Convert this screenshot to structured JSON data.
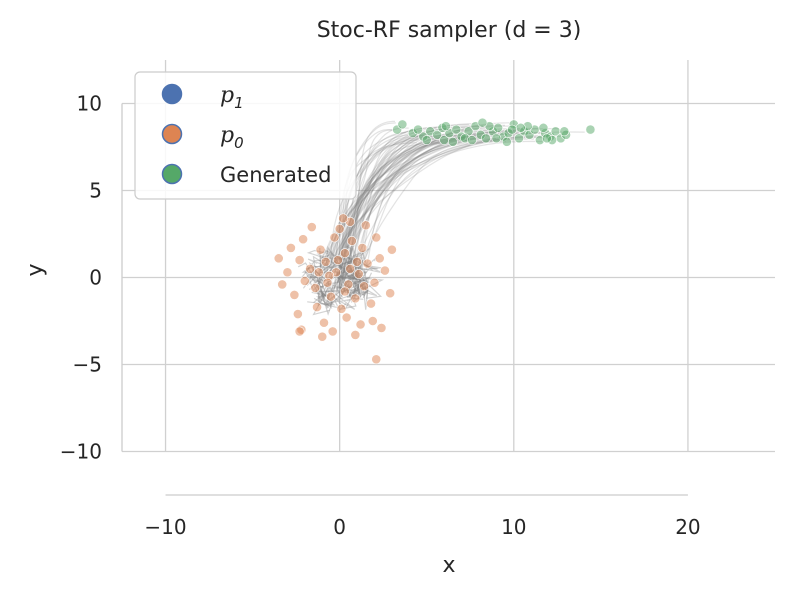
{
  "chart_data": {
    "type": "scatter",
    "title": "Stoc-RF sampler (d = 3)",
    "xlabel": "x",
    "ylabel": "y",
    "xlim": [
      -12.5,
      25
    ],
    "ylim": [
      -12.5,
      12.5
    ],
    "xticks": [
      -10,
      0,
      10,
      20
    ],
    "yticks": [
      -10,
      -5,
      0,
      5,
      10
    ],
    "xtick_labels": [
      "−10",
      "0",
      "10",
      "20"
    ],
    "ytick_labels": [
      "−10",
      "−5",
      "0",
      "5",
      "10"
    ],
    "grid": true,
    "legend_position": "top-left",
    "legend": [
      {
        "label": "p",
        "sub": "1",
        "math": true,
        "color": "#4c72b0"
      },
      {
        "label": "p",
        "sub": "0",
        "math": true,
        "color": "#dd8452"
      },
      {
        "label": "Generated",
        "math": false,
        "color": "#55a868"
      }
    ],
    "series": [
      {
        "name": "p_0",
        "color": "#dd8452",
        "points": [
          [
            -0.2,
            0.3
          ],
          [
            0.5,
            -0.4
          ],
          [
            -0.8,
            0.9
          ],
          [
            1.1,
            0.2
          ],
          [
            0.3,
            1.4
          ],
          [
            -1.4,
            -0.6
          ],
          [
            0.9,
            -1.2
          ],
          [
            -0.5,
            -1.1
          ],
          [
            1.6,
            0.8
          ],
          [
            -1.7,
            0.5
          ],
          [
            0.1,
            -1.8
          ],
          [
            1.3,
            1.7
          ],
          [
            -1.1,
            1.6
          ],
          [
            2.0,
            -0.3
          ],
          [
            -2.0,
            -0.2
          ],
          [
            0.7,
            2.1
          ],
          [
            -0.3,
            2.3
          ],
          [
            0.4,
            -2.3
          ],
          [
            -1.3,
            -1.7
          ],
          [
            1.8,
            -1.5
          ],
          [
            2.3,
            1.1
          ],
          [
            -2.3,
            1.0
          ],
          [
            -2.6,
            -1.0
          ],
          [
            2.6,
            0.4
          ],
          [
            0.0,
            2.8
          ],
          [
            -0.9,
            -2.6
          ],
          [
            1.2,
            -2.7
          ],
          [
            -2.1,
            2.2
          ],
          [
            2.1,
            2.3
          ],
          [
            -3.0,
            0.3
          ],
          [
            -2.4,
            -2.1
          ],
          [
            1.9,
            -2.5
          ],
          [
            0.6,
            3.2
          ],
          [
            -0.4,
            -3.1
          ],
          [
            2.9,
            -0.9
          ],
          [
            -3.3,
            -0.4
          ],
          [
            3.0,
            1.6
          ],
          [
            -1.6,
            2.9
          ],
          [
            0.9,
            -3.3
          ],
          [
            -2.8,
            1.7
          ],
          [
            -2.2,
            -3.0
          ],
          [
            1.5,
            3.0
          ],
          [
            -3.5,
            1.1
          ],
          [
            0.2,
            3.4
          ],
          [
            -1.0,
            -3.4
          ],
          [
            2.4,
            -2.9
          ],
          [
            1.0,
            0.9
          ],
          [
            -0.6,
            0.1
          ],
          [
            0.3,
            -0.8
          ],
          [
            -1.2,
            0.3
          ],
          [
            1.4,
            -0.5
          ],
          [
            -0.1,
            1.0
          ],
          [
            -0.7,
            -0.3
          ],
          [
            0.6,
            0.5
          ],
          [
            2.1,
            -4.7
          ],
          [
            -2.3,
            -3.1
          ]
        ]
      },
      {
        "name": "Generated",
        "color": "#55a868",
        "points": [
          [
            3.3,
            8.5
          ],
          [
            3.6,
            8.8
          ],
          [
            4.2,
            8.3
          ],
          [
            4.8,
            8.1
          ],
          [
            5.2,
            8.4
          ],
          [
            5.6,
            8.2
          ],
          [
            6.0,
            7.9
          ],
          [
            6.3,
            8.3
          ],
          [
            6.7,
            8.5
          ],
          [
            7.0,
            8.1
          ],
          [
            7.4,
            8.4
          ],
          [
            7.8,
            8.7
          ],
          [
            8.1,
            8.2
          ],
          [
            8.4,
            8.0
          ],
          [
            8.8,
            8.4
          ],
          [
            9.1,
            8.6
          ],
          [
            9.4,
            8.1
          ],
          [
            9.7,
            8.3
          ],
          [
            10.0,
            8.8
          ],
          [
            10.3,
            8.0
          ],
          [
            10.6,
            8.4
          ],
          [
            10.9,
            8.2
          ],
          [
            11.2,
            8.5
          ],
          [
            11.5,
            7.9
          ],
          [
            11.8,
            8.3
          ],
          [
            12.1,
            8.1
          ],
          [
            12.4,
            8.4
          ],
          [
            12.7,
            8.0
          ],
          [
            13.0,
            8.2
          ],
          [
            14.4,
            8.5
          ],
          [
            5.0,
            7.9
          ],
          [
            5.9,
            8.6
          ],
          [
            6.5,
            7.8
          ],
          [
            7.2,
            8.0
          ],
          [
            8.6,
            8.7
          ],
          [
            9.6,
            7.8
          ],
          [
            10.8,
            8.7
          ],
          [
            11.7,
            8.6
          ],
          [
            12.2,
            7.9
          ],
          [
            4.5,
            8.5
          ],
          [
            7.6,
            7.9
          ],
          [
            9.0,
            8.0
          ],
          [
            10.4,
            8.6
          ],
          [
            11.9,
            8.0
          ],
          [
            6.1,
            8.7
          ],
          [
            8.2,
            8.9
          ],
          [
            9.9,
            8.5
          ],
          [
            12.9,
            8.4
          ]
        ]
      }
    ],
    "trajectories": {
      "name": "sampling paths",
      "color": "#808080",
      "description": "curves from p_0 cluster near (0,0) to generated samples near y = 8.2",
      "count": 70
    }
  }
}
